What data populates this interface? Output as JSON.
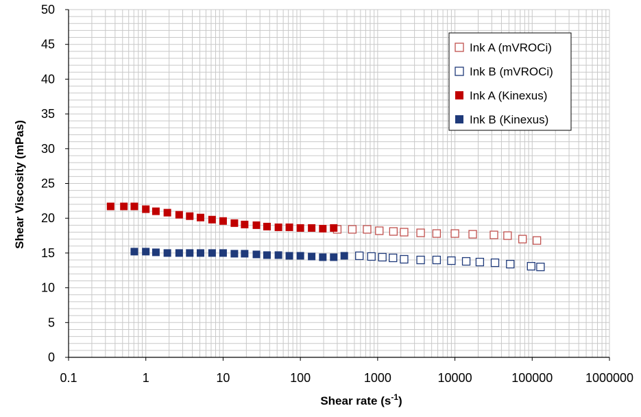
{
  "chart_data": {
    "type": "scatter",
    "title": "",
    "xlabel": "Shear rate (s",
    "xlabel_sup": "-1",
    "xlabel_close": ")",
    "ylabel": "Shear Viscosity (mPas)",
    "xscale": "log",
    "xlim": [
      0.1,
      1000000
    ],
    "ylim": [
      0,
      50
    ],
    "grid": true,
    "legend_position": "top-right",
    "x_tick_labels": [
      "0.1",
      "1",
      "10",
      "100",
      "1000",
      "10000",
      "100000",
      "1000000"
    ],
    "y_tick_labels": [
      "0",
      "5",
      "10",
      "15",
      "20",
      "25",
      "30",
      "35",
      "40",
      "45",
      "50"
    ],
    "series": [
      {
        "name": "Ink A (mVROCi)",
        "color": "#c0504d",
        "marker": "open-square",
        "x": [
          300,
          470,
          730,
          1050,
          1600,
          2200,
          3600,
          5800,
          10000,
          17000,
          32000,
          48000,
          75000,
          115000
        ],
        "y": [
          18.4,
          18.4,
          18.4,
          18.2,
          18.1,
          18.0,
          17.9,
          17.8,
          17.8,
          17.7,
          17.6,
          17.5,
          17.0,
          16.8
        ]
      },
      {
        "name": "Ink B (mVROCi)",
        "color": "#1f3a7a",
        "marker": "open-square",
        "x": [
          580,
          830,
          1150,
          1580,
          2200,
          3600,
          5800,
          9000,
          14000,
          21000,
          33000,
          52000,
          97000,
          128000
        ],
        "y": [
          14.6,
          14.5,
          14.4,
          14.3,
          14.1,
          14.0,
          14.0,
          13.9,
          13.8,
          13.7,
          13.6,
          13.4,
          13.1,
          13.0
        ]
      },
      {
        "name": "Ink A (Kinexus)",
        "color": "#c00000",
        "marker": "filled-square",
        "x": [
          0.35,
          0.52,
          0.71,
          1.0,
          1.35,
          1.9,
          2.7,
          3.7,
          5.1,
          7.2,
          10,
          14,
          19,
          27,
          37,
          52,
          72,
          100,
          140,
          195,
          270
        ],
        "y": [
          21.7,
          21.7,
          21.7,
          21.3,
          21.0,
          20.8,
          20.5,
          20.3,
          20.1,
          19.8,
          19.6,
          19.3,
          19.1,
          19.0,
          18.8,
          18.7,
          18.7,
          18.6,
          18.6,
          18.5,
          18.6
        ]
      },
      {
        "name": "Ink B (Kinexus)",
        "color": "#1f3a7a",
        "marker": "filled-square",
        "x": [
          0.71,
          1.0,
          1.35,
          1.9,
          2.7,
          3.7,
          5.1,
          7.2,
          10,
          14,
          19,
          27,
          37,
          52,
          72,
          100,
          140,
          195,
          270,
          370
        ],
        "y": [
          15.2,
          15.2,
          15.1,
          15.0,
          15.0,
          15.0,
          15.0,
          15.0,
          15.0,
          14.9,
          14.9,
          14.8,
          14.7,
          14.7,
          14.6,
          14.6,
          14.5,
          14.4,
          14.4,
          14.6
        ]
      }
    ]
  }
}
